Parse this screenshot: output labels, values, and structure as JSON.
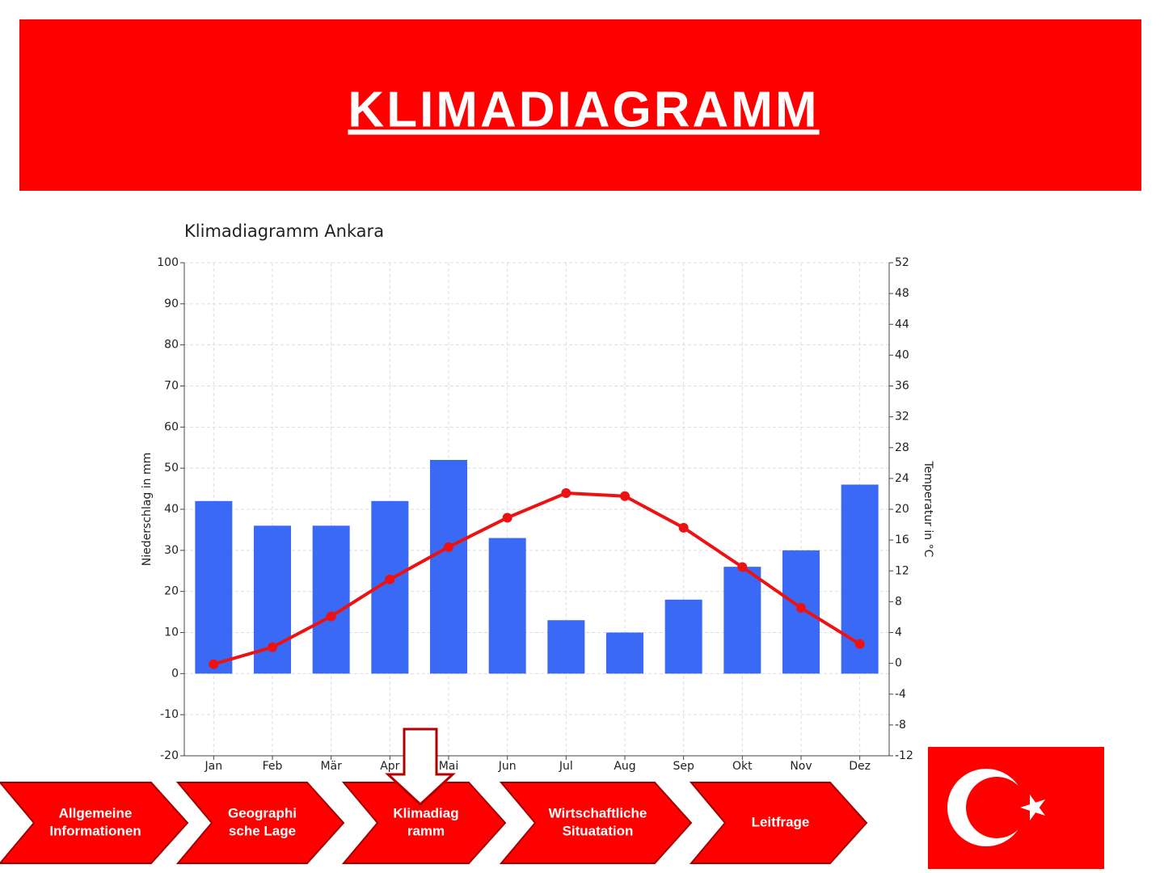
{
  "header": {
    "title": "KLIMADIAGRAMM"
  },
  "chart_data": {
    "type": "bar-line",
    "title": "Klimadiagramm Ankara",
    "categories": [
      "Jan",
      "Feb",
      "Mär",
      "Apr",
      "Mai",
      "Jun",
      "Jul",
      "Aug",
      "Sep",
      "Okt",
      "Nov",
      "Dez"
    ],
    "ylabel": "Niederschlag in mm",
    "y2label": "Temperatur in °C",
    "ylim": [
      -20,
      100
    ],
    "yticks": [
      -20,
      -10,
      0,
      10,
      20,
      30,
      40,
      50,
      60,
      70,
      80,
      90,
      100
    ],
    "y2lim": [
      -12,
      52
    ],
    "y2ticks": [
      -12,
      -8,
      -4,
      0,
      4,
      8,
      12,
      16,
      20,
      24,
      28,
      32,
      36,
      40,
      44,
      48,
      52
    ],
    "grid": true,
    "series": [
      {
        "type": "bar",
        "color": "#3a6af5",
        "values": [
          42,
          36,
          36,
          42,
          52,
          33,
          13,
          10,
          18,
          26,
          30,
          46
        ]
      },
      {
        "type": "line",
        "axis": "y2",
        "color": "#ee1111",
        "values": [
          -0.1,
          2.1,
          6.1,
          10.9,
          15.1,
          18.9,
          22.1,
          21.7,
          17.6,
          12.5,
          7.2,
          2.5
        ]
      }
    ]
  },
  "nav": [
    [
      "Allgemeine",
      "Informationen"
    ],
    [
      "Geographi",
      "sche Lage"
    ],
    [
      "Klimadiag",
      "ramm"
    ],
    [
      "Wirtschaftliche",
      "Situatation"
    ],
    [
      "Leitfrage"
    ]
  ]
}
